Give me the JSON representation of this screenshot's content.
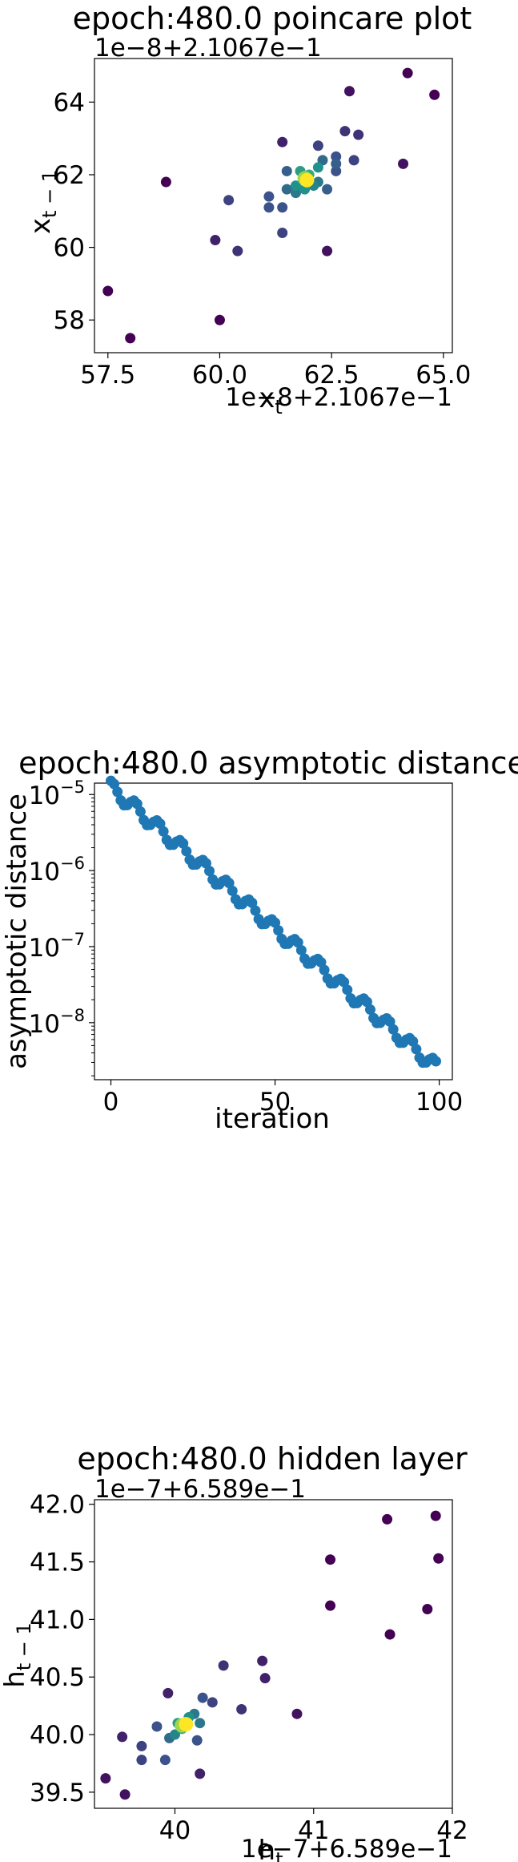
{
  "chart_data": [
    {
      "type": "scatter",
      "title": "epoch:480.0 poincare plot",
      "xlabel": "x_t",
      "ylabel": "x_{t-1}",
      "x_offset_label": "1e−8+2.1067e−1",
      "y_offset_label": "1e−8+2.1067e−1",
      "xlim": [
        57.2,
        65.2
      ],
      "ylim": [
        57.1,
        65.2
      ],
      "xticks": [
        57.5,
        60.0,
        62.5,
        65.0
      ],
      "xtick_labels": [
        "57.5",
        "60.0",
        "62.5",
        "65.0"
      ],
      "yticks": [
        58,
        60,
        62,
        64
      ],
      "ytick_labels": [
        "58",
        "60",
        "62",
        "64"
      ],
      "colormap": [
        "#440154",
        "#3b528b",
        "#21918c",
        "#5ec962",
        "#fde725"
      ],
      "points": [
        {
          "x": 57.5,
          "y": 58.8,
          "d": 0
        },
        {
          "x": 58.0,
          "y": 57.5,
          "d": 0
        },
        {
          "x": 58.8,
          "y": 61.8,
          "d": 0
        },
        {
          "x": 60.0,
          "y": 58.0,
          "d": 0
        },
        {
          "x": 59.9,
          "y": 60.2,
          "d": 0.1
        },
        {
          "x": 60.4,
          "y": 59.9,
          "d": 0.15
        },
        {
          "x": 60.2,
          "y": 61.3,
          "d": 0.2
        },
        {
          "x": 61.1,
          "y": 61.4,
          "d": 0.25
        },
        {
          "x": 61.1,
          "y": 61.1,
          "d": 0.25
        },
        {
          "x": 61.4,
          "y": 61.1,
          "d": 0.25
        },
        {
          "x": 61.4,
          "y": 60.4,
          "d": 0.2
        },
        {
          "x": 61.4,
          "y": 62.9,
          "d": 0.1
        },
        {
          "x": 61.5,
          "y": 62.1,
          "d": 0.3
        },
        {
          "x": 61.5,
          "y": 61.6,
          "d": 0.35
        },
        {
          "x": 61.7,
          "y": 61.5,
          "d": 0.4
        },
        {
          "x": 61.7,
          "y": 61.7,
          "d": 0.5
        },
        {
          "x": 61.8,
          "y": 62.1,
          "d": 0.55
        },
        {
          "x": 61.9,
          "y": 61.6,
          "d": 0.5
        },
        {
          "x": 62.0,
          "y": 62.0,
          "d": 0.6
        },
        {
          "x": 62.2,
          "y": 62.2,
          "d": 0.5
        },
        {
          "x": 62.1,
          "y": 61.7,
          "d": 0.45
        },
        {
          "x": 62.2,
          "y": 61.8,
          "d": 0.4
        },
        {
          "x": 62.3,
          "y": 62.4,
          "d": 0.35
        },
        {
          "x": 62.4,
          "y": 61.6,
          "d": 0.3
        },
        {
          "x": 62.2,
          "y": 62.8,
          "d": 0.2
        },
        {
          "x": 62.6,
          "y": 62.3,
          "d": 0.3
        },
        {
          "x": 62.6,
          "y": 62.5,
          "d": 0.25
        },
        {
          "x": 62.6,
          "y": 62.1,
          "d": 0.25
        },
        {
          "x": 62.4,
          "y": 59.9,
          "d": 0.05
        },
        {
          "x": 62.8,
          "y": 63.2,
          "d": 0.15
        },
        {
          "x": 63.0,
          "y": 62.4,
          "d": 0.2
        },
        {
          "x": 63.1,
          "y": 63.1,
          "d": 0.15
        },
        {
          "x": 62.9,
          "y": 64.3,
          "d": 0.05
        },
        {
          "x": 64.1,
          "y": 62.3,
          "d": 0.05
        },
        {
          "x": 64.2,
          "y": 64.8,
          "d": 0
        },
        {
          "x": 64.8,
          "y": 64.2,
          "d": 0
        },
        {
          "x": 61.9,
          "y": 61.9,
          "d": 0.85
        },
        {
          "x": 61.95,
          "y": 61.85,
          "d": 1.0
        }
      ]
    },
    {
      "type": "scatter",
      "title": "epoch:480.0 asymptotic distance",
      "xlabel": "iteration",
      "ylabel": "asymptotic distance",
      "yscale": "log",
      "xlim": [
        -5,
        104
      ],
      "ylim_log10": [
        -8.75,
        -4.85
      ],
      "xticks": [
        0,
        50,
        100
      ],
      "xtick_labels": [
        "0",
        "50",
        "100"
      ],
      "yticks_log10": [
        -5,
        -6,
        -7,
        -8
      ],
      "ytick_labels": [
        "10",
        "10",
        "10",
        "10"
      ],
      "ytick_exponents": [
        "−5",
        "−6",
        "−7",
        "−8"
      ],
      "color": "#1f77b4",
      "points_note": "",
      "decay": {
        "start": 1.25e-05,
        "end": 2.6e-09,
        "n": 100,
        "ripple_period": 7
      }
    },
    {
      "type": "scatter",
      "title": "epoch:480.0 hidden layer",
      "xlabel": "h_t",
      "ylabel": "h_{t-1}",
      "x_offset_label": "1e−7+6.589e−1",
      "y_offset_label": "1e−7+6.589e−1",
      "xlim": [
        39.42,
        42.0
      ],
      "ylim": [
        39.36,
        42.04
      ],
      "xticks": [
        40,
        41,
        42
      ],
      "xtick_labels": [
        "40",
        "41",
        "42"
      ],
      "yticks": [
        39.5,
        40.0,
        40.5,
        41.0,
        41.5,
        42.0
      ],
      "ytick_labels": [
        "39.5",
        "40.0",
        "40.5",
        "41.0",
        "41.5",
        "42.0"
      ],
      "colormap": [
        "#440154",
        "#3b528b",
        "#21918c",
        "#5ec962",
        "#fde725"
      ],
      "points": [
        {
          "x": 39.5,
          "y": 39.62,
          "d": 0.05
        },
        {
          "x": 39.64,
          "y": 39.48,
          "d": 0.05
        },
        {
          "x": 39.62,
          "y": 39.98,
          "d": 0.1
        },
        {
          "x": 39.76,
          "y": 39.9,
          "d": 0.2
        },
        {
          "x": 39.76,
          "y": 39.78,
          "d": 0.2
        },
        {
          "x": 39.87,
          "y": 40.07,
          "d": 0.25
        },
        {
          "x": 39.95,
          "y": 40.36,
          "d": 0.1
        },
        {
          "x": 39.96,
          "y": 39.97,
          "d": 0.35
        },
        {
          "x": 39.93,
          "y": 39.78,
          "d": 0.25
        },
        {
          "x": 40.0,
          "y": 40.0,
          "d": 0.45
        },
        {
          "x": 40.02,
          "y": 40.1,
          "d": 0.55
        },
        {
          "x": 40.05,
          "y": 40.05,
          "d": 0.6
        },
        {
          "x": 40.1,
          "y": 40.15,
          "d": 0.5
        },
        {
          "x": 40.14,
          "y": 40.18,
          "d": 0.4
        },
        {
          "x": 40.18,
          "y": 40.1,
          "d": 0.4
        },
        {
          "x": 40.2,
          "y": 40.32,
          "d": 0.25
        },
        {
          "x": 40.16,
          "y": 39.95,
          "d": 0.25
        },
        {
          "x": 40.18,
          "y": 39.66,
          "d": 0.1
        },
        {
          "x": 40.27,
          "y": 40.28,
          "d": 0.2
        },
        {
          "x": 40.35,
          "y": 40.6,
          "d": 0.15
        },
        {
          "x": 40.48,
          "y": 40.22,
          "d": 0.15
        },
        {
          "x": 40.63,
          "y": 40.64,
          "d": 0.1
        },
        {
          "x": 40.65,
          "y": 40.49,
          "d": 0.1
        },
        {
          "x": 40.88,
          "y": 40.18,
          "d": 0.05
        },
        {
          "x": 41.12,
          "y": 41.12,
          "d": 0
        },
        {
          "x": 41.12,
          "y": 41.52,
          "d": 0
        },
        {
          "x": 41.53,
          "y": 41.87,
          "d": 0
        },
        {
          "x": 41.55,
          "y": 40.87,
          "d": 0
        },
        {
          "x": 41.82,
          "y": 41.09,
          "d": 0
        },
        {
          "x": 41.88,
          "y": 41.9,
          "d": 0
        },
        {
          "x": 41.9,
          "y": 41.53,
          "d": 0
        },
        {
          "x": 40.05,
          "y": 40.08,
          "d": 0.85
        },
        {
          "x": 40.08,
          "y": 40.09,
          "d": 1.0
        }
      ]
    }
  ]
}
